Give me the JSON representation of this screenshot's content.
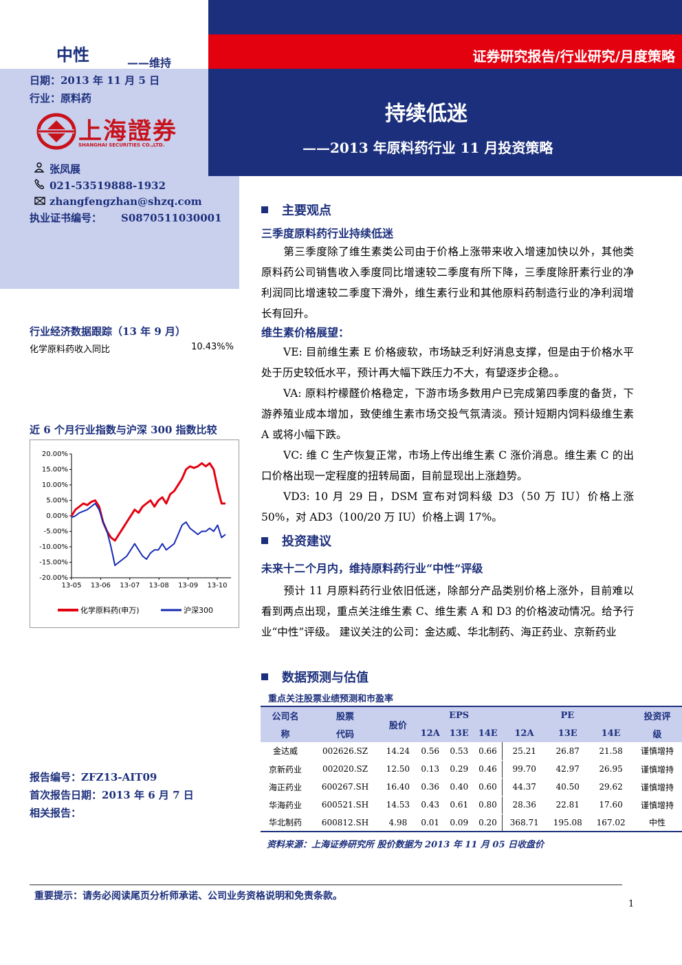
{
  "header": {
    "rating": "中性",
    "rating_sub": "——维持",
    "date": "日期：2013 年 11 月 5 日",
    "industry": "行业：原料药",
    "breadcrumb": "证券研究报告/行业研究/月度策略",
    "title": "持续低迷",
    "subtitle": "——2013 年原料药行业 11 月投资策略"
  },
  "logo": {
    "cn": "上海證券",
    "en": "SHANGHAI SECURITIES CO.,LTD."
  },
  "analyst": {
    "name": "张凤展",
    "phone": "021-53519888-1932",
    "email": "zhangfengzhan@shzq.com",
    "cert_label": "执业证书编号：",
    "cert_no": "S0870511030001"
  },
  "sidebar": {
    "econ_title": "行业经济数据跟踪（13 年 9 月）",
    "econ_label": "化学原料药收入同比",
    "econ_value": "10.43%%",
    "chart_title": "近 6 个月行业指数与沪深 300 指数比较",
    "report_no": "报告编号：ZFZ13-AIT09",
    "first_date": "首次报告日期：2013 年 6 月 7 日",
    "related": "相关报告："
  },
  "chart_data": {
    "type": "line",
    "ylim": [
      -20,
      20
    ],
    "yticks": [
      "20.00%",
      "15.00%",
      "10.00%",
      "5.00%",
      "0.00%",
      "-5.00%",
      "-10.00%",
      "-15.00%",
      "-20.00%"
    ],
    "xticks": [
      "13-05",
      "13-06",
      "13-07",
      "13-08",
      "13-09",
      "13-10"
    ],
    "series": [
      {
        "name": "化学原料药(申万)",
        "color": "#e3000f",
        "values": [
          0,
          2,
          3,
          4,
          3.5,
          4.5,
          5,
          3,
          -2,
          -5,
          -7,
          -8,
          -6,
          -4,
          -2,
          0,
          2,
          1,
          3,
          4,
          5,
          3,
          5,
          6,
          4,
          7,
          8,
          10,
          12,
          15,
          16,
          15.5,
          16,
          17,
          16,
          17,
          15,
          9,
          4,
          4
        ]
      },
      {
        "name": "沪深300",
        "color": "#1428b4",
        "values": [
          -0.5,
          0,
          1,
          1.5,
          2,
          3,
          4,
          2,
          -2,
          -5,
          -10,
          -16,
          -15,
          -14,
          -13,
          -11,
          -9,
          -11,
          -13,
          -14,
          -12,
          -11,
          -11,
          -9,
          -11,
          -10,
          -9,
          -6,
          -3,
          -2,
          -4,
          -5,
          -6,
          -5,
          -5,
          -4,
          -5,
          -3,
          -7,
          -6
        ]
      }
    ]
  },
  "main": {
    "section1": "主要观点",
    "s1_sub1": "三季度原料药行业持续低迷",
    "s1_p1": "第三季度除了维生素类公司由于价格上涨带来收入增速加快以外，其他类原料药公司销售收入季度同比增速较二季度有所下降，三季度除肝素行业的净利润同比增速较二季度下滑外，维生素行业和其他原料药制造行业的净利润增长有回升。",
    "s1_sub2": "维生素价格展望：",
    "s1_p2": "VE: 目前维生素 E 价格疲软，市场缺乏利好消息支撑，但是由于价格水平处于历史较低水平，预计再大幅下跌压力不大，有望逐步企稳。。",
    "s1_p3": "VA: 原料柠檬醛价格稳定，下游市场多数用户已完成第四季度的备货，下游养殖业成本增加，致使维生素市场交投气氛清淡。预计短期内饲料级维生素 A 或将小幅下跌。",
    "s1_p4": "VC: 维 C 生产恢复正常，市场上传出维生素 C 涨价消息。维生素 C 的出口价格出现一定程度的扭转局面，目前显现出上涨趋势。",
    "s1_p5": "VD3: 10 月 29 日，DSM 宣布对饲料级 D3（50 万 IU）价格上涨 50%，对 AD3（100/20 万 IU）价格上调 17%。",
    "section2": "投资建议",
    "s2_sub": "未来十二个月内，维持原料药行业“中性”评级",
    "s2_p": "预计 11 月原料药行业依旧低迷，除部分产品类别价格上涨外，目前难以看到两点出现，重点关注维生素 C、维生素 A 和 D3 的价格波动情况。给予行业“中性”评级。 建议关注的公司：金达威、华北制药、海正药业、京新药业",
    "section3": "数据预测与估值",
    "table_title": "重点关注股票业绩预测和市盈率"
  },
  "table": {
    "h_company": [
      "公司名",
      "称"
    ],
    "h_code": [
      "股票",
      "代码"
    ],
    "h_price": "股价",
    "h_eps": "EPS",
    "h_pe": "PE",
    "h_rating": [
      "投资评",
      "级"
    ],
    "years": [
      "12A",
      "13E",
      "14E",
      "12A",
      "13E",
      "14E"
    ],
    "rows": [
      [
        "金达威",
        "002626.SZ",
        "14.24",
        "0.56",
        "0.53",
        "0.66",
        "25.21",
        "26.87",
        "21.58",
        "谨慎增持"
      ],
      [
        "京新药业",
        "002020.SZ",
        "12.50",
        "0.13",
        "0.29",
        "0.46",
        "99.70",
        "42.97",
        "26.95",
        "谨慎增持"
      ],
      [
        "海正药业",
        "600267.SH",
        "16.40",
        "0.36",
        "0.40",
        "0.60",
        "44.37",
        "40.50",
        "29.62",
        "谨慎增持"
      ],
      [
        "华海药业",
        "600521.SH",
        "14.53",
        "0.43",
        "0.61",
        "0.80",
        "28.36",
        "22.81",
        "17.60",
        "谨慎增持"
      ],
      [
        "华北制药",
        "600812.SH",
        "4.98",
        "0.01",
        "0.09",
        "0.20",
        "368.71",
        "195.08",
        "167.02",
        "中性"
      ]
    ],
    "source": "资料来源：上海证券研究所  股价数据为 2013 年 11 月 05 日收盘价"
  },
  "footer": {
    "note": "重要提示：请务必阅读尾页分析师承诺、公司业务资格说明和免责条款。",
    "page": "1"
  }
}
